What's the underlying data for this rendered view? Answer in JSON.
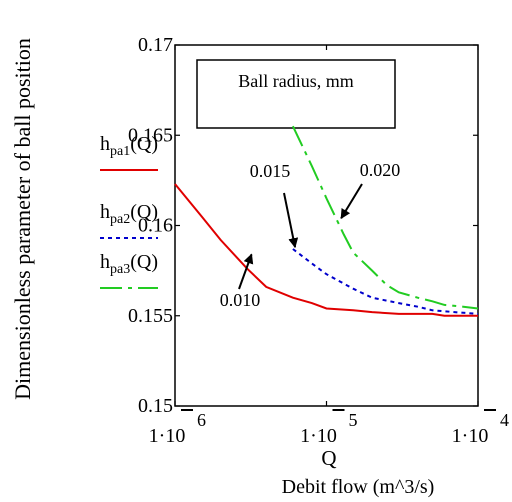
{
  "chart_data": {
    "type": "line",
    "x_scale": "log",
    "xlim": [
      1e-06,
      0.0001
    ],
    "ylim": [
      0.15,
      0.17
    ],
    "y_ticks": [
      {
        "value": 0.15,
        "label": "0.15"
      },
      {
        "value": 0.155,
        "label": "0.155"
      },
      {
        "value": 0.16,
        "label": "0.16"
      },
      {
        "value": 0.165,
        "label": "0.165"
      },
      {
        "value": 0.17,
        "label": "0.17"
      }
    ],
    "x_ticks": [
      {
        "value": 1e-06,
        "mantissa": "1·10",
        "exp": "6"
      },
      {
        "value": 1e-05,
        "mantissa": "1·10",
        "exp": "5"
      },
      {
        "value": 0.0001,
        "mantissa": "1·10",
        "exp": "4"
      }
    ],
    "xlabel": "Q",
    "xlabel2": "Debit flow (m^3/s)",
    "ylabel": "Dimensionless parameter of ball position",
    "legend_box_text": "Ball radius, mm",
    "series": [
      {
        "h": "h",
        "sub": "pa1",
        "arg": "(Q)",
        "color": "#e00000",
        "dash": "",
        "x": [
          1e-06,
          1.5e-06,
          2e-06,
          3e-06,
          4e-06,
          6e-06,
          8e-06,
          1e-05,
          1.5e-05,
          2e-05,
          3e-05,
          4e-05,
          5e-05,
          6e-05,
          8e-05,
          0.0001
        ],
        "y": [
          0.1623,
          0.1605,
          0.1592,
          0.1576,
          0.1566,
          0.156,
          0.1557,
          0.1554,
          0.1553,
          0.1552,
          0.1551,
          0.1551,
          0.1551,
          0.155,
          0.155,
          0.155
        ]
      },
      {
        "h": "h",
        "sub": "pa2",
        "arg": "(Q)",
        "color": "#0000cc",
        "dash": "4,4",
        "x": [
          6e-06,
          8e-06,
          1e-05,
          1.5e-05,
          2e-05,
          3e-05,
          4e-05,
          5e-05,
          7e-05,
          0.0001
        ],
        "y": [
          0.1587,
          0.1579,
          0.1573,
          0.1565,
          0.156,
          0.1557,
          0.1555,
          0.1553,
          0.1552,
          0.1551
        ]
      },
      {
        "h": "h",
        "sub": "pa3",
        "arg": "(Q)",
        "color": "#22cc22",
        "dash": "22,6,4,6",
        "x": [
          6e-06,
          8e-06,
          1e-05,
          1.3e-05,
          1.5e-05,
          2e-05,
          2.5e-05,
          3e-05,
          4e-05,
          5e-05,
          6e-05,
          8e-05,
          0.0001
        ],
        "y": [
          0.1655,
          0.1633,
          0.1615,
          0.1595,
          0.1585,
          0.1575,
          0.1567,
          0.1563,
          0.156,
          0.1558,
          0.1556,
          0.1555,
          0.1554
        ]
      }
    ],
    "annotations": [
      {
        "text": "0.015",
        "target": [
          6.2e-06,
          0.1588
        ]
      },
      {
        "text": "0.020",
        "target": [
          1.25e-05,
          0.1604
        ]
      },
      {
        "text": "0.010",
        "target": [
          3.2e-06,
          0.1584
        ]
      }
    ]
  }
}
